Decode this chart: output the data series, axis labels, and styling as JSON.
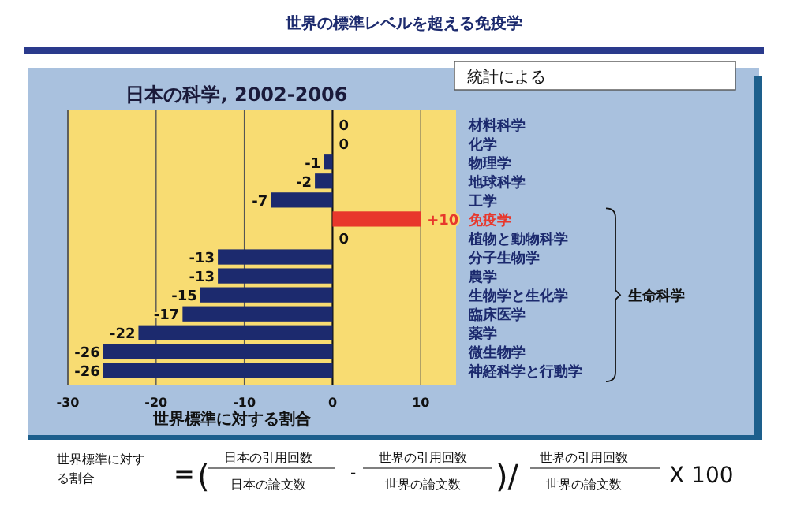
{
  "chart_data": {
    "type": "bar",
    "orientation": "horizontal",
    "title": "世界の標準レベルを超える免疫学",
    "subtitle": "日本の科学, 2002-2006",
    "xlabel": "世界標準に対する割合",
    "categories": [
      "材料科学",
      "化学",
      "物理学",
      "地球科学",
      "工学",
      "免疫学",
      "植物と動物科学",
      "分子生物学",
      "農学",
      "生物学と生化学",
      "臨床医学",
      "薬学",
      "微生物学",
      "神経科学と行動学"
    ],
    "values": [
      0,
      0,
      -1,
      -2,
      -7,
      10,
      0,
      -13,
      -13,
      -15,
      -17,
      -22,
      -26,
      -26
    ],
    "value_labels": [
      "0",
      "0",
      "-1",
      "-2",
      "-7",
      "+10",
      "0",
      "-13",
      "-13",
      "-15",
      "-17",
      "-22",
      "-26",
      "-26"
    ],
    "colors": [
      "#1c2a6e",
      "#1c2a6e",
      "#1c2a6e",
      "#1c2a6e",
      "#1c2a6e",
      "#e8372c",
      "#1c2a6e",
      "#1c2a6e",
      "#1c2a6e",
      "#1c2a6e",
      "#1c2a6e",
      "#1c2a6e",
      "#1c2a6e",
      "#1c2a6e"
    ],
    "xlim": [
      -30,
      14
    ],
    "xticks": [
      -30,
      -20,
      -10,
      0,
      10
    ],
    "grid": "x",
    "annotations": [
      "統計による",
      "生命科学",
      "世界標準に対する割合",
      "=",
      "(",
      "日本の引用回数",
      "日本の論文数",
      "-",
      "世界の引用回数",
      "世界の論文数",
      ")/",
      "世界の引用回数",
      "世界の論文数",
      "X 100"
    ]
  }
}
